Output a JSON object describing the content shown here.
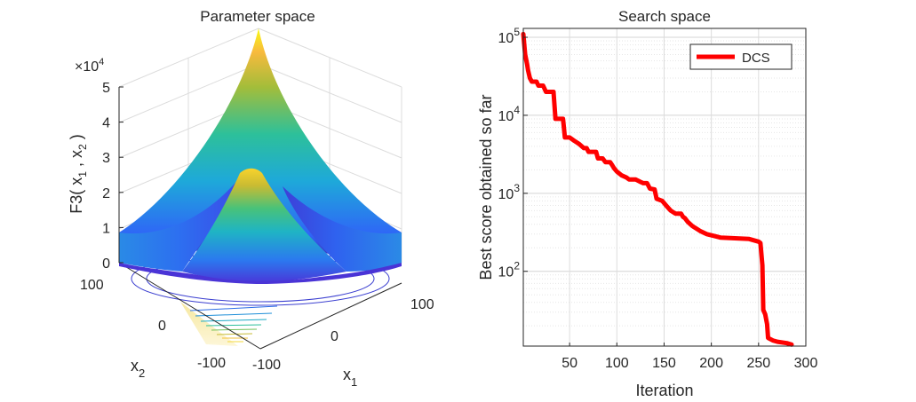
{
  "chart_data": [
    {
      "type": "surface",
      "title": "Parameter space",
      "xlabel": "x",
      "xlabel_sub": "1",
      "ylabel": "x",
      "ylabel_sub": "2",
      "zlabel": {
        "prefix": "F3( x",
        "sub1": "1",
        "mid": " , x",
        "sub2": "2",
        "suffix": " )"
      },
      "zscale": {
        "base": "×10",
        "exp": "4"
      },
      "xticks": [
        "-100",
        "0",
        "100"
      ],
      "yticks": [
        "-100",
        "0",
        "100"
      ],
      "zticks": [
        "0",
        "1",
        "2",
        "3",
        "4",
        "5"
      ],
      "xlim": [
        -100,
        100
      ],
      "ylim": [
        -100,
        100
      ],
      "zlim": [
        0,
        50000
      ],
      "colormap": [
        "#3e26a8",
        "#2f65f7",
        "#1ea9d9",
        "#2dc09a",
        "#a3bd3a",
        "#f8ba3d",
        "#f9fb15"
      ],
      "contour_color": "#3b3fd0"
    },
    {
      "type": "line",
      "title": "Search space",
      "xlabel": "Iteration",
      "ylabel": "Best score obtained so far",
      "yscale": "log",
      "xlim": [
        1,
        300
      ],
      "ylim": [
        11,
        130000
      ],
      "xticks": [
        "50",
        "100",
        "150",
        "200",
        "250",
        "300"
      ],
      "yticks": [
        {
          "base": "10",
          "exp": "2"
        },
        {
          "base": "10",
          "exp": "3"
        },
        {
          "base": "10",
          "exp": "4"
        },
        {
          "base": "10",
          "exp": "5"
        }
      ],
      "grid": true,
      "legend_position": "top-right",
      "series": [
        {
          "name": "DCS",
          "color": "#ff0000",
          "points": [
            [
              1,
              110000
            ],
            [
              3,
              60000
            ],
            [
              5,
              45000
            ],
            [
              6,
              38000
            ],
            [
              8,
              30000
            ],
            [
              10,
              27000
            ],
            [
              15,
              27000
            ],
            [
              17,
              24000
            ],
            [
              22,
              24000
            ],
            [
              25,
              20000
            ],
            [
              32,
              20000
            ],
            [
              33,
              20000
            ],
            [
              35,
              9000
            ],
            [
              40,
              9000
            ],
            [
              43,
              9000
            ],
            [
              45,
              5200
            ],
            [
              50,
              5200
            ],
            [
              55,
              4700
            ],
            [
              60,
              4300
            ],
            [
              65,
              3800
            ],
            [
              68,
              3800
            ],
            [
              70,
              3400
            ],
            [
              78,
              3400
            ],
            [
              80,
              2800
            ],
            [
              85,
              2800
            ],
            [
              88,
              2500
            ],
            [
              93,
              2500
            ],
            [
              95,
              2300
            ],
            [
              97,
              2100
            ],
            [
              100,
              1900
            ],
            [
              105,
              1700
            ],
            [
              110,
              1600
            ],
            [
              113,
              1500
            ],
            [
              120,
              1500
            ],
            [
              125,
              1400
            ],
            [
              128,
              1350
            ],
            [
              132,
              1350
            ],
            [
              135,
              1150
            ],
            [
              140,
              1120
            ],
            [
              142,
              850
            ],
            [
              148,
              800
            ],
            [
              152,
              700
            ],
            [
              157,
              600
            ],
            [
              162,
              550
            ],
            [
              168,
              550
            ],
            [
              170,
              500
            ],
            [
              172,
              480
            ],
            [
              175,
              430
            ],
            [
              180,
              380
            ],
            [
              188,
              330
            ],
            [
              195,
              300
            ],
            [
              205,
              280
            ],
            [
              210,
              270
            ],
            [
              240,
              260
            ],
            [
              250,
              240
            ],
            [
              252,
              230
            ],
            [
              254,
              120
            ],
            [
              255,
              32
            ],
            [
              257,
              28
            ],
            [
              259,
              21
            ],
            [
              260,
              14
            ],
            [
              265,
              13
            ],
            [
              270,
              12.5
            ],
            [
              280,
              12
            ],
            [
              285,
              11.5
            ]
          ]
        }
      ]
    }
  ]
}
